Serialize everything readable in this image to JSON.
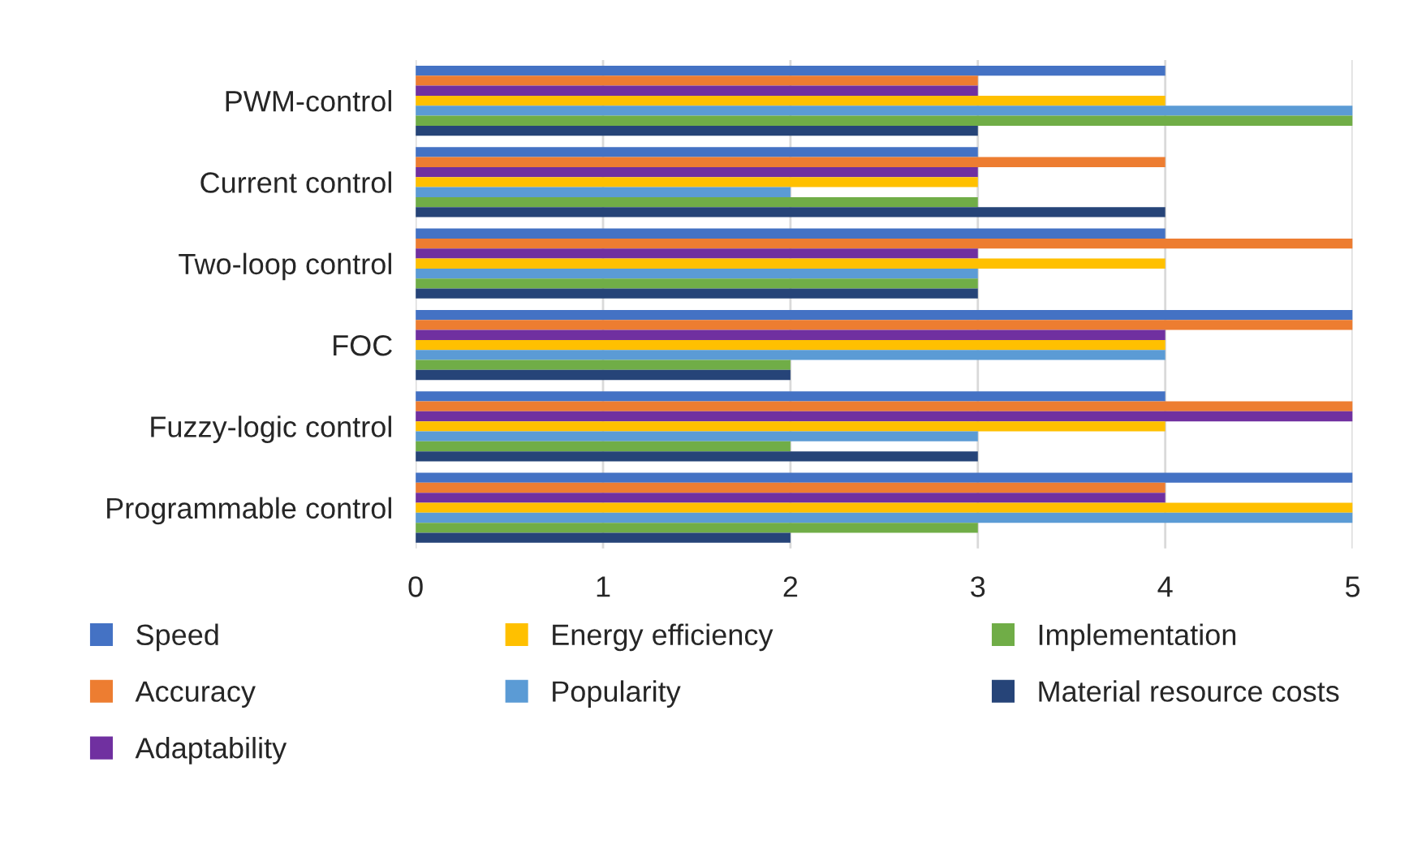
{
  "chart_data": {
    "type": "bar",
    "orientation": "horizontal",
    "categories": [
      "PWM-control",
      "Current control",
      "Two-loop control",
      "FOC",
      "Fuzzy-logic control",
      "Programmable control"
    ],
    "series": [
      {
        "name": "Speed",
        "color": "#4472c4",
        "values": [
          4,
          3,
          4,
          5,
          4,
          5
        ]
      },
      {
        "name": "Accuracy",
        "color": "#ed7d31",
        "values": [
          3,
          4,
          5,
          5,
          5,
          4
        ]
      },
      {
        "name": "Adaptability",
        "color": "#7030a0",
        "values": [
          3,
          3,
          3,
          4,
          5,
          4
        ]
      },
      {
        "name": "Energy efficiency",
        "color": "#ffc000",
        "values": [
          4,
          3,
          4,
          4,
          4,
          5
        ]
      },
      {
        "name": "Popularity",
        "color": "#5b9bd5",
        "values": [
          5,
          2,
          3,
          4,
          3,
          5
        ]
      },
      {
        "name": "Implementation",
        "color": "#70ad47",
        "values": [
          5,
          3,
          3,
          2,
          2,
          3
        ]
      },
      {
        "name": "Material resource costs",
        "color": "#264478",
        "values": [
          3,
          4,
          3,
          2,
          3,
          2
        ]
      }
    ],
    "xlim": [
      0,
      5
    ],
    "xticks": [
      0,
      1,
      2,
      3,
      4,
      5
    ],
    "grid": "x",
    "legend": "bottom"
  }
}
